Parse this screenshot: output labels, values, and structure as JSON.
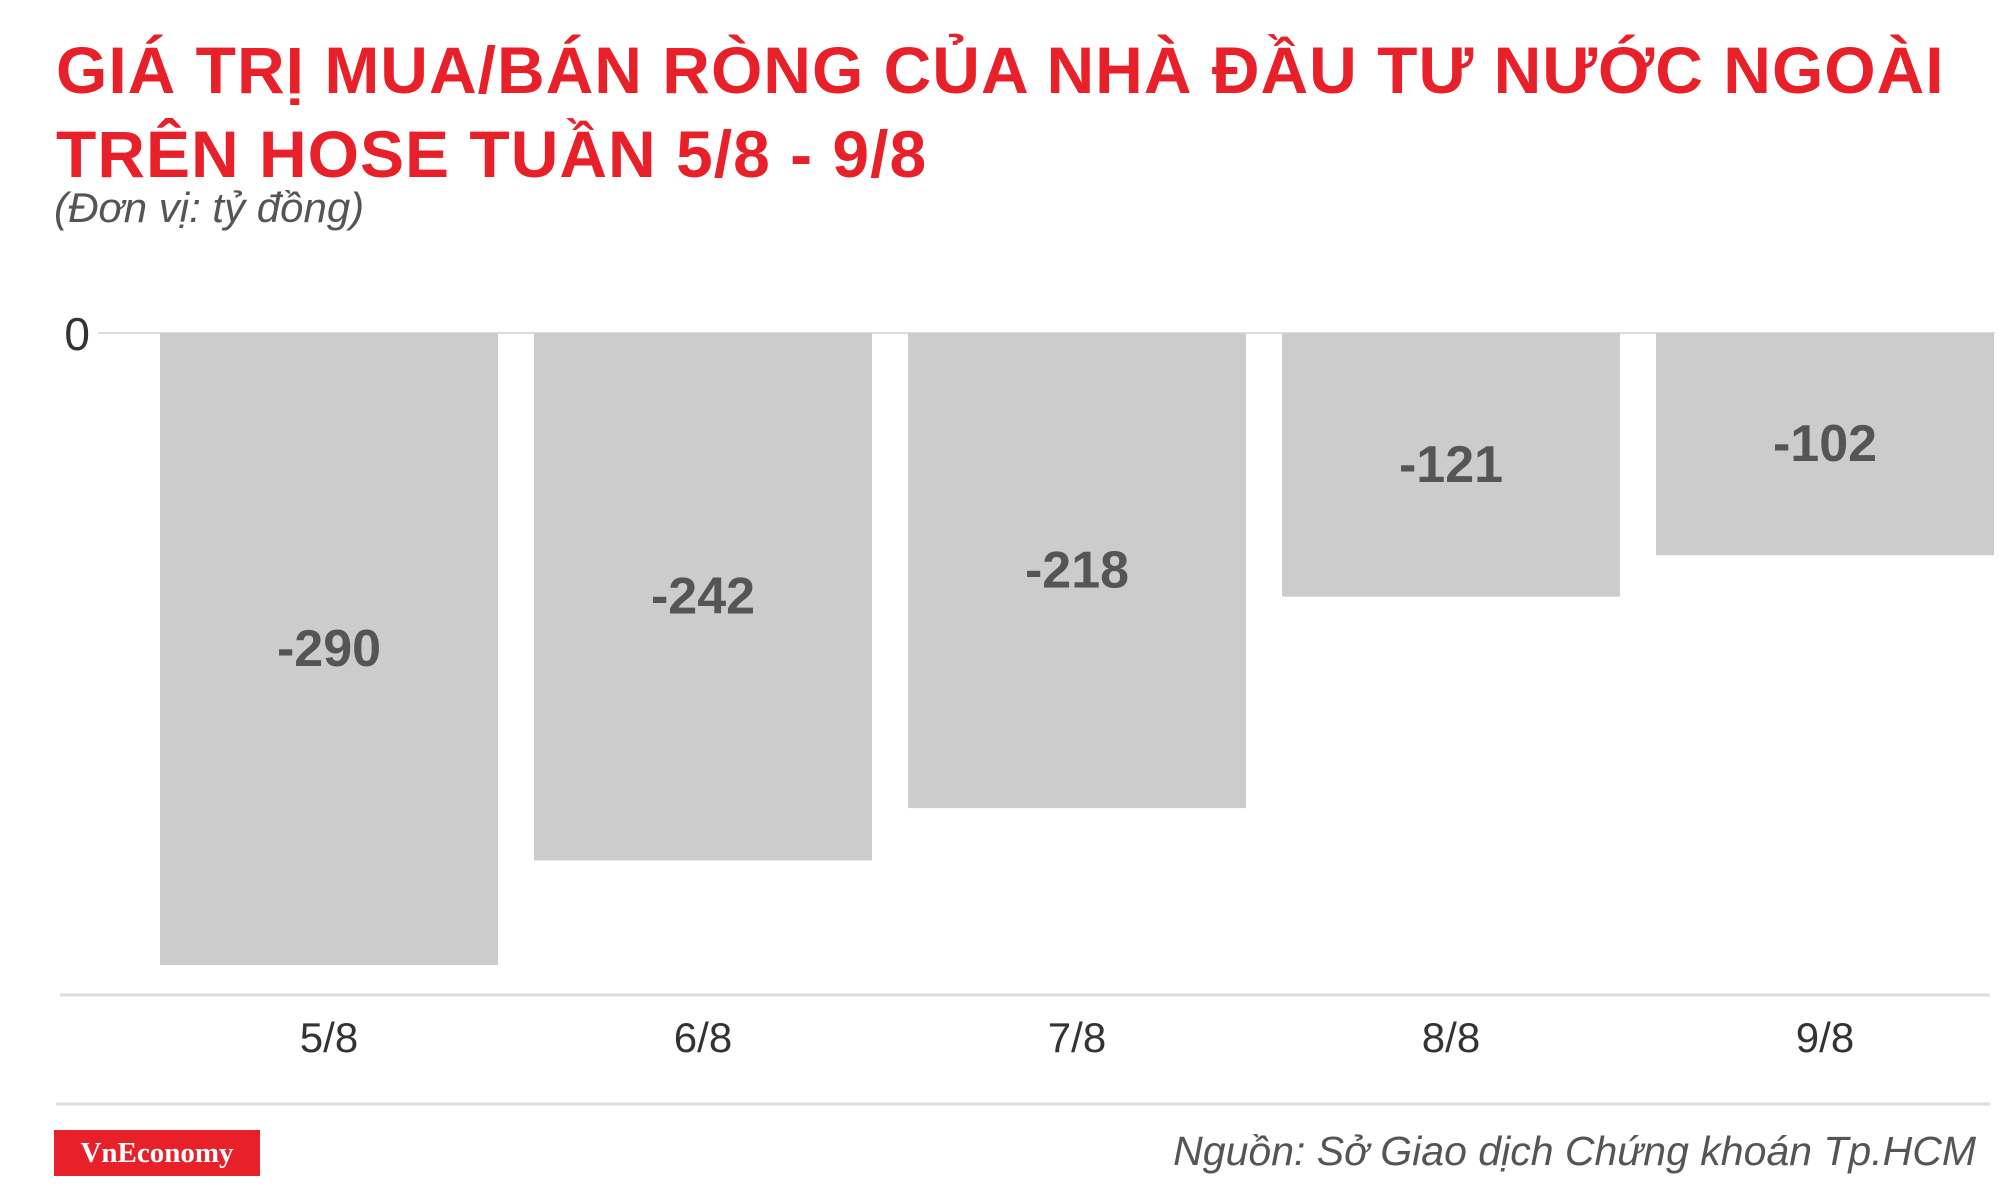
{
  "title_lines": [
    "GIÁ TRỊ MUA/BÁN RÒNG CỦA NHÀ ĐẦU TƯ NƯỚC NGOÀI",
    "TRÊN HOSE TUẦN 5/8 - 9/8"
  ],
  "unit_note": "(Đơn vị: tỷ đồng)",
  "source": "Nguồn: Sở Giao dịch Chứng khoán Tp.HCM",
  "logo": "VnEconomy",
  "colors": {
    "title": "#e8202a",
    "bar": "#cccccc",
    "value_label": "#555555",
    "axis_line": "#dddddd",
    "logo_bg": "#e8202a"
  },
  "chart_data": {
    "type": "bar",
    "title": "GIÁ TRỊ MUA/BÁN RÒNG CỦA NHÀ ĐẦU TƯ NƯỚC NGOÀI TRÊN HOSE TUẦN 5/8 - 9/8",
    "xlabel": "",
    "ylabel": "(Đơn vị: tỷ đồng)",
    "categories": [
      "5/8",
      "6/8",
      "7/8",
      "8/8",
      "9/8"
    ],
    "values": [
      -290,
      -242,
      -218,
      -121,
      -102
    ],
    "y_tick_labels": [
      "0"
    ],
    "ylim": [
      -300,
      0
    ],
    "grid": false,
    "legend": "none"
  }
}
